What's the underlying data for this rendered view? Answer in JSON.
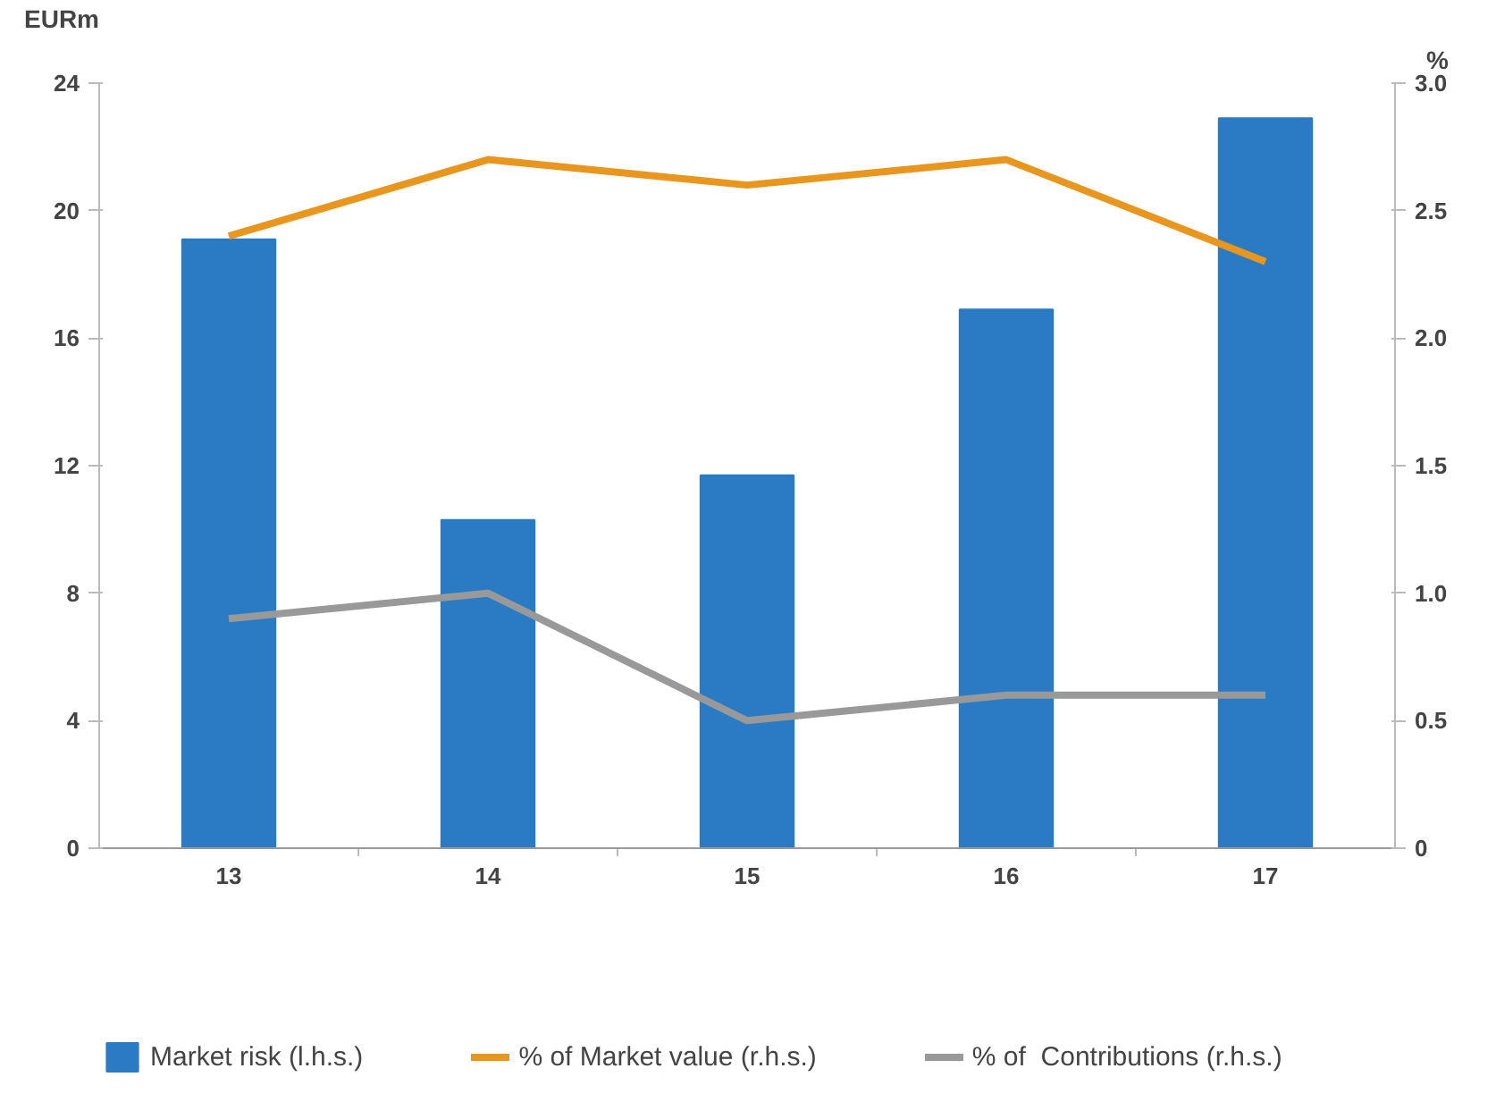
{
  "chart_data": {
    "type": "bar",
    "ylabel": "EURm",
    "y2label": "%",
    "categories": [
      "13",
      "14",
      "15",
      "16",
      "17"
    ],
    "series": [
      {
        "name": "Market risk (l.h.s.)",
        "color": "#2a7bc4",
        "values": [
          19.1,
          10.3,
          11.7,
          16.9,
          22.9
        ]
      },
      {
        "name": "% of Market value (r.h.s.)",
        "type": "line",
        "axis": "y2",
        "color": "#e8961e",
        "values": [
          2.4,
          2.7,
          2.6,
          2.7,
          2.3
        ]
      },
      {
        "name": "% of  Contributions (r.h.s.)",
        "type": "line",
        "axis": "y2",
        "color": "#999999",
        "values": [
          0.9,
          1.0,
          0.5,
          0.6,
          0.6
        ]
      }
    ],
    "ylim": [
      0,
      24
    ],
    "yticks": [
      0,
      4,
      8,
      12,
      16,
      20,
      24
    ],
    "y2lim": [
      0,
      3.0
    ],
    "y2ticks": [
      {
        "value": 0,
        "label": "0"
      },
      {
        "value": 0.5,
        "label": "0.5"
      },
      {
        "value": 1.0,
        "label": "1.0"
      },
      {
        "value": 1.5,
        "label": "1.5"
      },
      {
        "value": 2.0,
        "label": "2.0"
      },
      {
        "value": 2.5,
        "label": "2.5"
      },
      {
        "value": 3.0,
        "label": "3.0"
      }
    ],
    "grid": false,
    "legend": "bottom",
    "marker": "none",
    "line_style": "solid"
  }
}
